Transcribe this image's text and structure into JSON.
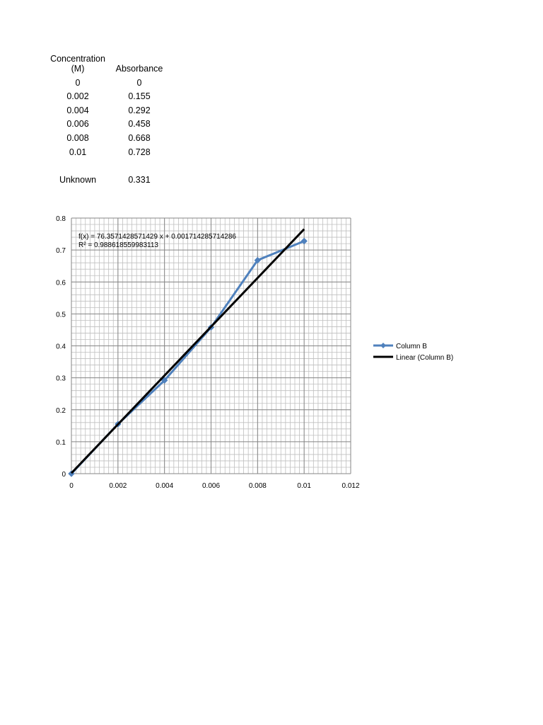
{
  "table": {
    "headers": [
      "Concentration (M)",
      "Absorbance"
    ],
    "rows": [
      [
        "0",
        "0"
      ],
      [
        "0.002",
        "0.155"
      ],
      [
        "0.004",
        "0.292"
      ],
      [
        "0.006",
        "0.458"
      ],
      [
        "0.008",
        "0.668"
      ],
      [
        "0.01",
        "0.728"
      ]
    ],
    "unknown": {
      "label": "Unknown",
      "value": "0.331"
    }
  },
  "chart_data": {
    "type": "scatter",
    "x": [
      0,
      0.002,
      0.004,
      0.006,
      0.008,
      0.01
    ],
    "series": [
      {
        "name": "Column B",
        "values": [
          0,
          0.155,
          0.292,
          0.458,
          0.668,
          0.728
        ],
        "color": "#4f81bd",
        "marker": "diamond",
        "connected": true
      }
    ],
    "trendline": {
      "name": "Linear (Column B)",
      "slope": 76.3571428571429,
      "intercept": 0.001714285714286,
      "color": "#000000",
      "x_range": [
        0,
        0.01
      ]
    },
    "annotations": [
      "f(x) = 76.3571428571429 x + 0.001714285714286",
      "R² = 0.988618559983113"
    ],
    "xlim": [
      0,
      0.012
    ],
    "ylim": [
      0,
      0.8
    ],
    "xticks": [
      "0",
      "0.002",
      "0.004",
      "0.006",
      "0.008",
      "0.01",
      "0.012"
    ],
    "yticks": [
      "0",
      "0.1",
      "0.2",
      "0.3",
      "0.4",
      "0.5",
      "0.6",
      "0.7",
      "0.8"
    ],
    "grid": true,
    "legend_position": "right"
  }
}
